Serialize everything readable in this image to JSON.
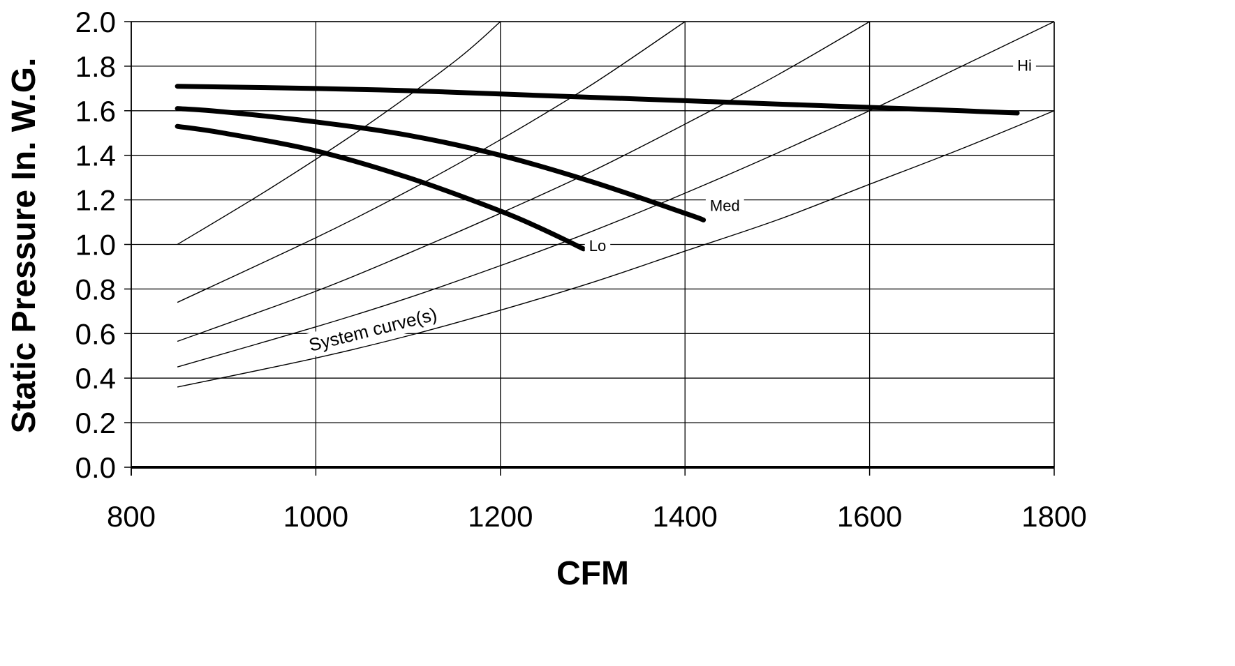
{
  "chart_data": {
    "type": "line",
    "title": "",
    "xlabel": "CFM",
    "ylabel": "Static Pressure In. W.G.",
    "xlim": [
      800,
      1800
    ],
    "ylim": [
      0,
      2.0
    ],
    "x_ticks": [
      800,
      1000,
      1200,
      1400,
      1600,
      1800
    ],
    "y_ticks": [
      "0.0",
      "0.2",
      "0.4",
      "0.6",
      "0.8",
      "1.0",
      "1.2",
      "1.4",
      "1.6",
      "1.8",
      "2.0"
    ],
    "grid": true,
    "legend": "none",
    "series": [
      {
        "name": "Hi",
        "role": "fan-curve",
        "points": [
          [
            850,
            1.71
          ],
          [
            1000,
            1.7
          ],
          [
            1100,
            1.69
          ],
          [
            1200,
            1.675
          ],
          [
            1300,
            1.66
          ],
          [
            1400,
            1.645
          ],
          [
            1500,
            1.63
          ],
          [
            1600,
            1.615
          ],
          [
            1700,
            1.6
          ],
          [
            1760,
            1.59
          ]
        ]
      },
      {
        "name": "Med",
        "role": "fan-curve",
        "points": [
          [
            850,
            1.61
          ],
          [
            900,
            1.595
          ],
          [
            1000,
            1.55
          ],
          [
            1100,
            1.49
          ],
          [
            1200,
            1.4
          ],
          [
            1300,
            1.28
          ],
          [
            1400,
            1.14
          ],
          [
            1420,
            1.11
          ]
        ]
      },
      {
        "name": "Lo",
        "role": "fan-curve",
        "points": [
          [
            850,
            1.53
          ],
          [
            900,
            1.5
          ],
          [
            1000,
            1.42
          ],
          [
            1100,
            1.3
          ],
          [
            1200,
            1.15
          ],
          [
            1250,
            1.06
          ],
          [
            1290,
            0.98
          ]
        ]
      },
      {
        "role": "system-curve",
        "points": [
          [
            850,
            1.0
          ],
          [
            950,
            1.25
          ],
          [
            1050,
            1.52
          ],
          [
            1150,
            1.82
          ],
          [
            1200,
            2.0
          ]
        ]
      },
      {
        "role": "system-curve",
        "points": [
          [
            850,
            0.74
          ],
          [
            1000,
            1.03
          ],
          [
            1100,
            1.24
          ],
          [
            1200,
            1.47
          ],
          [
            1300,
            1.72
          ],
          [
            1400,
            2.0
          ]
        ]
      },
      {
        "role": "system-curve",
        "points": [
          [
            850,
            0.565
          ],
          [
            1000,
            0.79
          ],
          [
            1100,
            0.96
          ],
          [
            1200,
            1.14
          ],
          [
            1300,
            1.33
          ],
          [
            1400,
            1.54
          ],
          [
            1500,
            1.76
          ],
          [
            1600,
            2.0
          ]
        ]
      },
      {
        "role": "system-curve",
        "points": [
          [
            850,
            0.45
          ],
          [
            1000,
            0.63
          ],
          [
            1100,
            0.76
          ],
          [
            1200,
            0.905
          ],
          [
            1300,
            1.06
          ],
          [
            1400,
            1.23
          ],
          [
            1500,
            1.41
          ],
          [
            1600,
            1.6
          ],
          [
            1700,
            1.8
          ],
          [
            1800,
            2.0
          ]
        ]
      },
      {
        "role": "system-curve",
        "points": [
          [
            850,
            0.36
          ],
          [
            1000,
            0.49
          ],
          [
            1100,
            0.59
          ],
          [
            1200,
            0.705
          ],
          [
            1300,
            0.83
          ],
          [
            1400,
            0.97
          ],
          [
            1500,
            1.11
          ],
          [
            1600,
            1.27
          ],
          [
            1700,
            1.43
          ],
          [
            1800,
            1.6
          ]
        ]
      }
    ],
    "annotations": [
      {
        "text": "Hi",
        "x": 1760,
        "y": 1.78
      },
      {
        "text": "Med",
        "x": 1427,
        "y": 1.15
      },
      {
        "text": "Lo",
        "x": 1296,
        "y": 0.97
      },
      {
        "text": "System curve(s)",
        "x": 1062,
        "y": 0.59,
        "angle_deg": -14
      }
    ]
  }
}
